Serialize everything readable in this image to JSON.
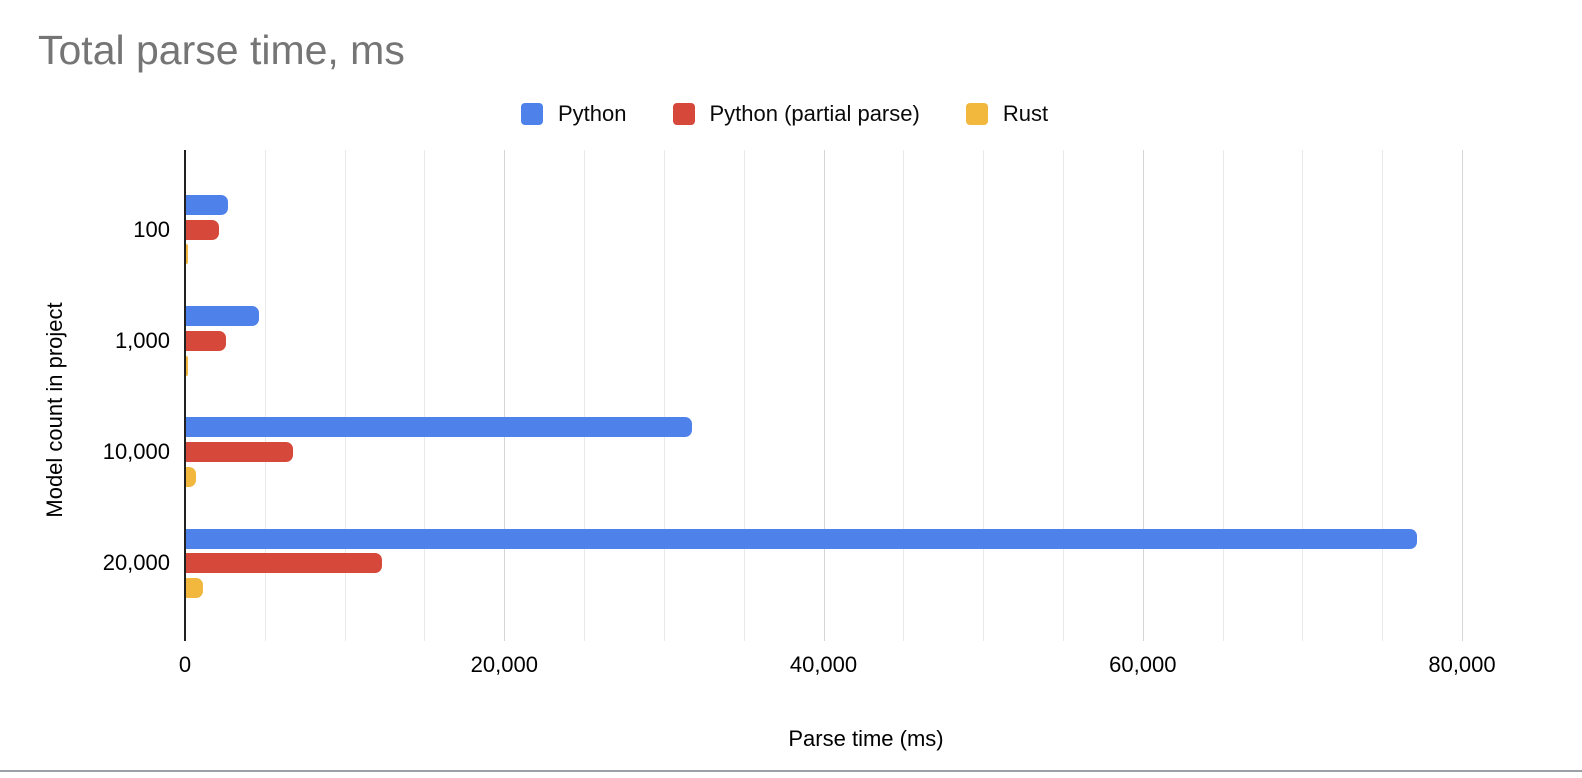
{
  "chart_data": {
    "type": "bar",
    "orientation": "horizontal",
    "title": "Total parse time, ms",
    "title_color": "#757575",
    "xlabel": "Parse time (ms)",
    "ylabel": "Model count in project",
    "categories": [
      "100",
      "1,000",
      "10,000",
      "20,000"
    ],
    "series": [
      {
        "name": "Python",
        "color": "#4e82ea",
        "values": [
          2600,
          4570,
          31700,
          77100
        ]
      },
      {
        "name": "Python (partial parse)",
        "color": "#d6493a",
        "values": [
          2050,
          2500,
          6700,
          12300
        ]
      },
      {
        "name": "Rust",
        "color": "#f2b83e",
        "values": [
          80,
          80,
          600,
          1080
        ]
      }
    ],
    "xlim": [
      0,
      80000
    ],
    "x_major_ticks": [
      0,
      20000,
      40000,
      60000,
      80000
    ],
    "x_tick_labels": [
      "0",
      "20,000",
      "40,000",
      "60,000",
      "80,000"
    ],
    "x_minor_step": 5000,
    "grid": true,
    "legend_position": "top"
  }
}
